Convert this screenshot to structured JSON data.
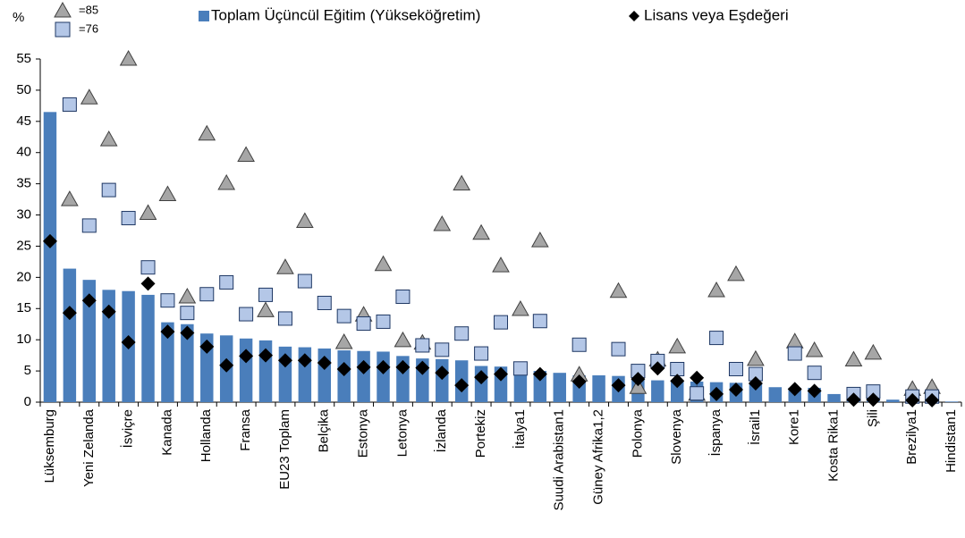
{
  "chart_data": {
    "type": "bar",
    "y_label": "%",
    "categories": [
      "Lüksemburg",
      null,
      "Yeni Zelanda",
      null,
      "İsviçre",
      null,
      "Kanada",
      null,
      "Hollanda",
      null,
      "Fransa",
      null,
      "EU23 Toplam",
      null,
      "Belçika",
      null,
      "Estonya",
      null,
      "Letonya",
      null,
      "İzlanda",
      null,
      "Portekiz",
      null,
      "İtalya1",
      null,
      "Suudi Arabistan1",
      null,
      "Güney Afrika1,2",
      null,
      "Polonya",
      null,
      "Slovenya",
      null,
      "İspanya",
      null,
      "İsrail1",
      null,
      "Kore1",
      null,
      "Kosta Rika1",
      null,
      "Şili",
      null,
      "Brezilya1",
      null,
      "Hindistan1"
    ],
    "series": [
      {
        "name": "=85",
        "marker": "triangle",
        "color": "#a6a6a6",
        "values": [
          null,
          32.5,
          48.8,
          42.1,
          55.0,
          30.3,
          33.3,
          16.9,
          43.0,
          35.1,
          39.6,
          14.7,
          21.6,
          29.0,
          null,
          9.6,
          14.0,
          22.1,
          9.9,
          9.5,
          28.5,
          35.0,
          27.1,
          21.9,
          14.9,
          25.9,
          null,
          4.4,
          null,
          17.8,
          2.4,
          6.8,
          8.9,
          1.3,
          17.9,
          20.5,
          6.9,
          null,
          9.7,
          8.3,
          null,
          6.8,
          7.9,
          null,
          2.1,
          2.4,
          null
        ]
      },
      {
        "name": "=76",
        "marker": "square",
        "color": "#b4c7e7",
        "values": [
          null,
          47.7,
          28.3,
          34.0,
          29.5,
          21.6,
          16.3,
          14.3,
          17.3,
          19.2,
          14.1,
          17.2,
          13.4,
          19.4,
          15.9,
          13.8,
          12.6,
          12.9,
          16.9,
          9.1,
          8.4,
          11.0,
          7.8,
          12.8,
          5.4,
          13.0,
          null,
          9.2,
          null,
          8.5,
          5.0,
          6.6,
          5.3,
          1.4,
          10.3,
          5.3,
          4.5,
          null,
          7.8,
          4.7,
          null,
          1.3,
          1.7,
          null,
          0.9,
          0.9,
          null
        ]
      },
      {
        "name": "Toplam Üçüncül Eğitim (Yükseköğretim)",
        "marker": "bar",
        "color": "#4a7ebb",
        "values": [
          46.5,
          21.4,
          19.6,
          18.0,
          17.8,
          17.2,
          12.8,
          12.5,
          11.0,
          10.7,
          10.2,
          9.9,
          8.9,
          8.8,
          8.6,
          8.3,
          8.2,
          8.1,
          7.4,
          7.0,
          6.9,
          6.7,
          5.8,
          5.7,
          5.3,
          5.0,
          4.7,
          4.3,
          4.3,
          4.2,
          3.8,
          3.5,
          3.4,
          3.3,
          3.2,
          3.1,
          3.0,
          2.4,
          2.3,
          2.3,
          1.3,
          0.9,
          0.9,
          0.4,
          0.3,
          0.2,
          0.1
        ]
      },
      {
        "name": "Lisans veya Eşdeğeri",
        "marker": "diamond",
        "color": "#000000",
        "values": [
          25.8,
          14.3,
          16.3,
          14.5,
          9.6,
          19.0,
          11.3,
          11.1,
          8.9,
          5.9,
          7.4,
          7.5,
          6.7,
          6.7,
          6.3,
          5.3,
          5.6,
          5.6,
          5.6,
          5.5,
          4.7,
          2.7,
          4.0,
          4.5,
          null,
          4.5,
          null,
          3.3,
          null,
          2.7,
          3.7,
          5.4,
          3.4,
          3.9,
          1.3,
          2.0,
          3.0,
          null,
          2.1,
          1.8,
          null,
          0.4,
          0.4,
          null,
          0.3,
          0.3,
          null
        ]
      }
    ],
    "ylim": [
      0,
      55
    ],
    "yticks": [
      0,
      5,
      10,
      15,
      20,
      25,
      30,
      35,
      40,
      45,
      50,
      55
    ],
    "grid": false
  }
}
